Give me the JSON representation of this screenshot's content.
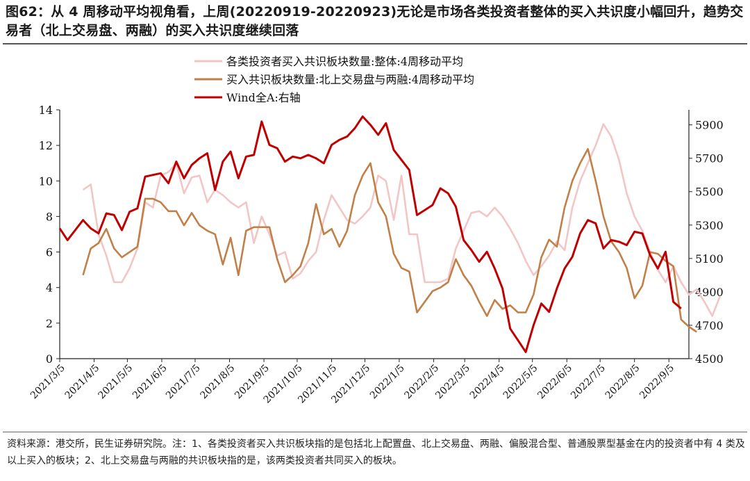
{
  "page": {
    "title": "图62：从 4 周移动平均视角看，上周(20220919-20220923)无论是市场各类投资者整体的买入共识度小幅回升，趋势交易者（北上交易盘、两融）的买入共识度继续回落",
    "footnote": "资料来源：港交所，民生证券研究院。注：1、各类投资者买入共识板块指的是包括北上配置盘、北上交易盘、两融、偏股混合型、普通股票型基金在内的投资者中有 4 类及以上买入的板块；2、北上交易盘与两融的共识板块指的是，该两类投资者共同买入的板块。"
  },
  "chart_data": {
    "type": "line",
    "x_labels": [
      "2021/3/5",
      "2021/4/5",
      "2021/5/5",
      "2021/6/5",
      "2021/7/5",
      "2021/8/5",
      "2021/9/5",
      "2021/10/5",
      "2021/11/5",
      "2021/12/5",
      "2022/1/5",
      "2022/2/5",
      "2022/3/5",
      "2022/4/5",
      "2022/5/5",
      "2022/6/5",
      "2022/7/5",
      "2022/8/5",
      "2022/9/5"
    ],
    "x_range": [
      0,
      81
    ],
    "x_tick_indices": [
      0,
      4.43,
      8.71,
      13.14,
      17.43,
      21.86,
      26.29,
      30.57,
      35,
      39.29,
      43.71,
      48.14,
      52.14,
      56.57,
      60.86,
      65.29,
      69.57,
      74,
      78.43
    ],
    "y_left": {
      "min": 0,
      "max": 14,
      "ticks": [
        0,
        2,
        4,
        6,
        8,
        10,
        12,
        14
      ]
    },
    "y_right": {
      "min": 4500,
      "max": 5990,
      "ticks": [
        4500,
        4700,
        4900,
        5100,
        5300,
        5500,
        5700,
        5900
      ]
    },
    "series": [
      {
        "name": "各类投资者买入共识板块数量:整体:4周移动平均",
        "axis": "left",
        "color": "#f2c6c6",
        "start": 3,
        "values": [
          9.5,
          9.8,
          7,
          5.8,
          4.3,
          4.3,
          5.1,
          6.2,
          8.8,
          8.5,
          10.3,
          10.5,
          11,
          9.3,
          10.2,
          10.3,
          8.8,
          9.5,
          9.2,
          8.8,
          8.5,
          8.8,
          6.5,
          8,
          7,
          5.8,
          6,
          4.5,
          4.8,
          5.5,
          6,
          7.8,
          9.2,
          8.5,
          7.8,
          7.6,
          8,
          8.5,
          10.3,
          10,
          7.8,
          10.3,
          7,
          7,
          4.3,
          4.3,
          4.3,
          4.5,
          6.2,
          7.2,
          8.2,
          8.3,
          8,
          8.5,
          8,
          7.3,
          6.5,
          5.5,
          4.7,
          5.2,
          5.8,
          6.6,
          6.1,
          8.5,
          10,
          11,
          12,
          13.2,
          12.5,
          11.2,
          9.3,
          8,
          7.2,
          6,
          5,
          4.3,
          5.2,
          4.3,
          3.6,
          3.9,
          3.2,
          2.4,
          3.5
        ]
      },
      {
        "name": "买入共识板块数量:北上交易盘与两融:4周移动平均",
        "axis": "left",
        "color": "#c08048",
        "start": 3,
        "values": [
          4.7,
          6.2,
          6.5,
          7.3,
          6.2,
          5.7,
          6,
          6.3,
          9,
          9,
          8.8,
          8.3,
          8.3,
          7.5,
          8.2,
          7.5,
          7.2,
          7,
          5.3,
          6.8,
          4.7,
          7.2,
          7.4,
          7.4,
          7.4,
          5.6,
          4.3,
          4.7,
          5.2,
          6.5,
          8.7,
          7,
          7.3,
          6.3,
          7.2,
          9.2,
          10.3,
          11,
          8.8,
          8,
          5.9,
          5.1,
          4.9,
          2.6,
          3.2,
          3.8,
          4,
          4.3,
          5.6,
          4.7,
          4.1,
          3.2,
          2.4,
          3.3,
          2.8,
          3,
          2.6,
          2.6,
          3.6,
          5.7,
          6.7,
          6.3,
          8.5,
          10,
          11,
          11.8,
          10,
          8,
          6.6,
          6,
          5.1,
          3.4,
          4.1,
          6,
          5.9,
          5.5,
          5.2,
          2.2,
          1.8,
          1.5
        ]
      },
      {
        "name": "Wind全A:右轴",
        "axis": "right",
        "color": "#c00000",
        "start": 0,
        "values": [
          5280,
          5210,
          5270,
          5330,
          5280,
          5250,
          5370,
          5360,
          5270,
          5380,
          5400,
          5590,
          5600,
          5610,
          5550,
          5680,
          5580,
          5660,
          5700,
          5730,
          5510,
          5680,
          5740,
          5580,
          5710,
          5720,
          5920,
          5780,
          5760,
          5680,
          5710,
          5700,
          5720,
          5700,
          5670,
          5780,
          5810,
          5830,
          5880,
          5950,
          5900,
          5840,
          5910,
          5750,
          5690,
          5630,
          5360,
          5390,
          5420,
          5520,
          5490,
          5410,
          5210,
          5150,
          5080,
          5140,
          5040,
          4920,
          4680,
          4610,
          4540,
          4700,
          4830,
          4780,
          4920,
          5040,
          5110,
          5250,
          5330,
          5310,
          5160,
          5210,
          5200,
          5180,
          5260,
          5250,
          5120,
          5040,
          5140,
          4840,
          4800
        ]
      }
    ]
  }
}
